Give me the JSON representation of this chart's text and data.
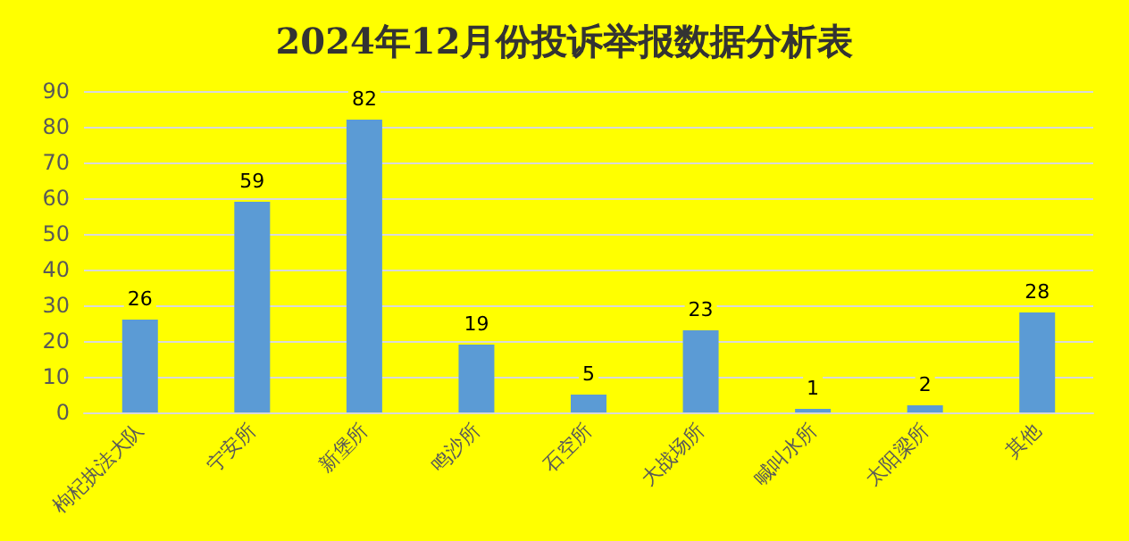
{
  "chart_data": {
    "type": "bar",
    "title": "2024年12月份投诉举报数据分析表",
    "categories": [
      "枸杞执法大队",
      "宁安所",
      "新堡所",
      "鸣沙所",
      "石空所",
      "大战场所",
      "喊叫水所",
      "太阳梁所",
      "其他"
    ],
    "values": [
      26,
      59,
      82,
      19,
      5,
      23,
      1,
      2,
      28
    ],
    "color": "#5b9bd5",
    "ylim": [
      0,
      90
    ],
    "yticks": [
      0,
      10,
      20,
      30,
      40,
      50,
      60,
      70,
      80,
      90
    ],
    "grid": "y",
    "data_labels": true
  }
}
